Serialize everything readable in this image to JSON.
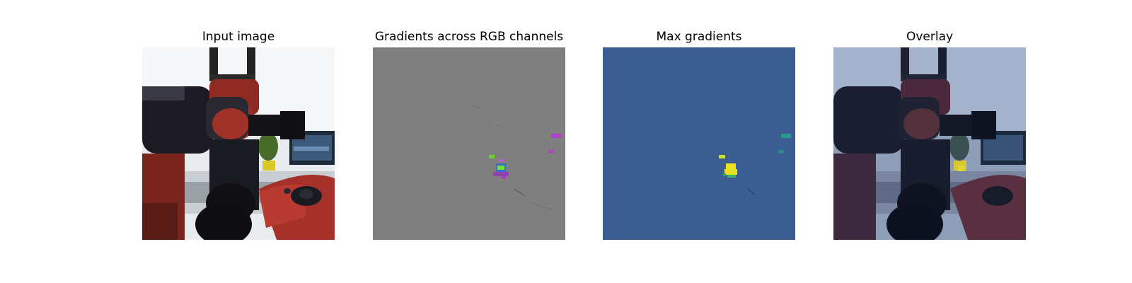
{
  "figure": {
    "panels": [
      {
        "id": "input",
        "title": "Input image"
      },
      {
        "id": "gradients",
        "title": "Gradients across RGB channels"
      },
      {
        "id": "max",
        "title": "Max gradients"
      },
      {
        "id": "overlay",
        "title": "Overlay"
      }
    ],
    "colors": {
      "gradient_background": "#7f7f7f",
      "max_gradient_background": "#3a5e92",
      "overlay_tint": "#9fb0d0",
      "robot_red": "#8f2a22",
      "robot_dark": "#1c1b24"
    }
  }
}
